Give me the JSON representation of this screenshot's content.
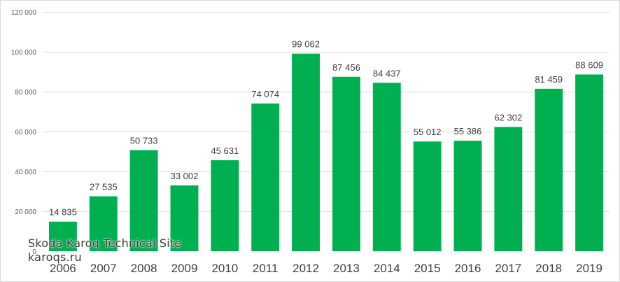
{
  "watermark": {
    "line1": "Skoda Karoq Technical Site",
    "line2": "karoqs.ru"
  },
  "colors": {
    "bar": "#00b050",
    "grid": "#d9d9d9",
    "text": "#404040"
  },
  "chart_data": {
    "type": "bar",
    "title": "",
    "xlabel": "",
    "ylabel": "",
    "categories": [
      "2006",
      "2007",
      "2008",
      "2009",
      "2010",
      "2011",
      "2012",
      "2013",
      "2014",
      "2015",
      "2016",
      "2017",
      "2018",
      "2019"
    ],
    "series": [
      {
        "values": [
          14835,
          27535,
          50733,
          33002,
          45631,
          74074,
          99062,
          87456,
          84437,
          55012,
          55386,
          62302,
          81459,
          88609
        ],
        "labels": [
          "14 835",
          "27 535",
          "50 733",
          "33 002",
          "45 631",
          "74 074",
          "99 062",
          "87 456",
          "84 437",
          "55 012",
          "55 386",
          "62 302",
          "81 459",
          "88 609"
        ]
      }
    ],
    "ylim": [
      0,
      120000
    ],
    "yticks": [
      0,
      20000,
      40000,
      60000,
      80000,
      100000,
      120000
    ],
    "ytick_labels": [
      "0",
      "20 000",
      "40 000",
      "60 000",
      "80 000",
      "100 000",
      "120 000"
    ],
    "grid": true,
    "legend": "none"
  }
}
